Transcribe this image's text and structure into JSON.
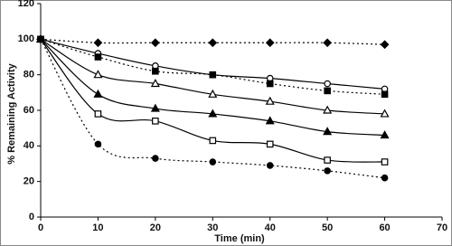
{
  "chart_data": {
    "type": "line",
    "x_label": "Time (min)",
    "y_label": "% Remaining Activity",
    "x": [
      0,
      10,
      20,
      30,
      40,
      50,
      60
    ],
    "xlim": [
      0,
      70
    ],
    "xticks": [
      0,
      10,
      20,
      30,
      40,
      50,
      60,
      70
    ],
    "ylim": [
      0,
      120
    ],
    "yticks": [
      0,
      20,
      40,
      60,
      80,
      100,
      120
    ],
    "grid": false,
    "series": [
      {
        "color": "#000000",
        "marker": "diamond",
        "filled": true,
        "dashed": true,
        "values": [
          100,
          98,
          98,
          98,
          98,
          98,
          97
        ]
      },
      {
        "color": "#000000",
        "marker": "circle",
        "filled": false,
        "dashed": false,
        "values": [
          100,
          92,
          85,
          80,
          78,
          75,
          72
        ]
      },
      {
        "color": "#000000",
        "marker": "square",
        "filled": true,
        "dashed": true,
        "values": [
          100,
          90,
          82,
          80,
          75,
          71,
          69
        ]
      },
      {
        "color": "#000000",
        "marker": "triangle",
        "filled": false,
        "dashed": false,
        "values": [
          100,
          80,
          75,
          69,
          65,
          60,
          58
        ]
      },
      {
        "color": "#000000",
        "marker": "triangle",
        "filled": true,
        "dashed": false,
        "values": [
          100,
          69,
          61,
          58,
          54,
          48,
          46
        ]
      },
      {
        "color": "#000000",
        "marker": "square",
        "filled": false,
        "dashed": false,
        "values": [
          100,
          58,
          54,
          43,
          41,
          32,
          31
        ]
      },
      {
        "color": "#000000",
        "marker": "circle",
        "filled": true,
        "dashed": true,
        "values": [
          100,
          41,
          33,
          31,
          29,
          26,
          22
        ]
      }
    ]
  }
}
